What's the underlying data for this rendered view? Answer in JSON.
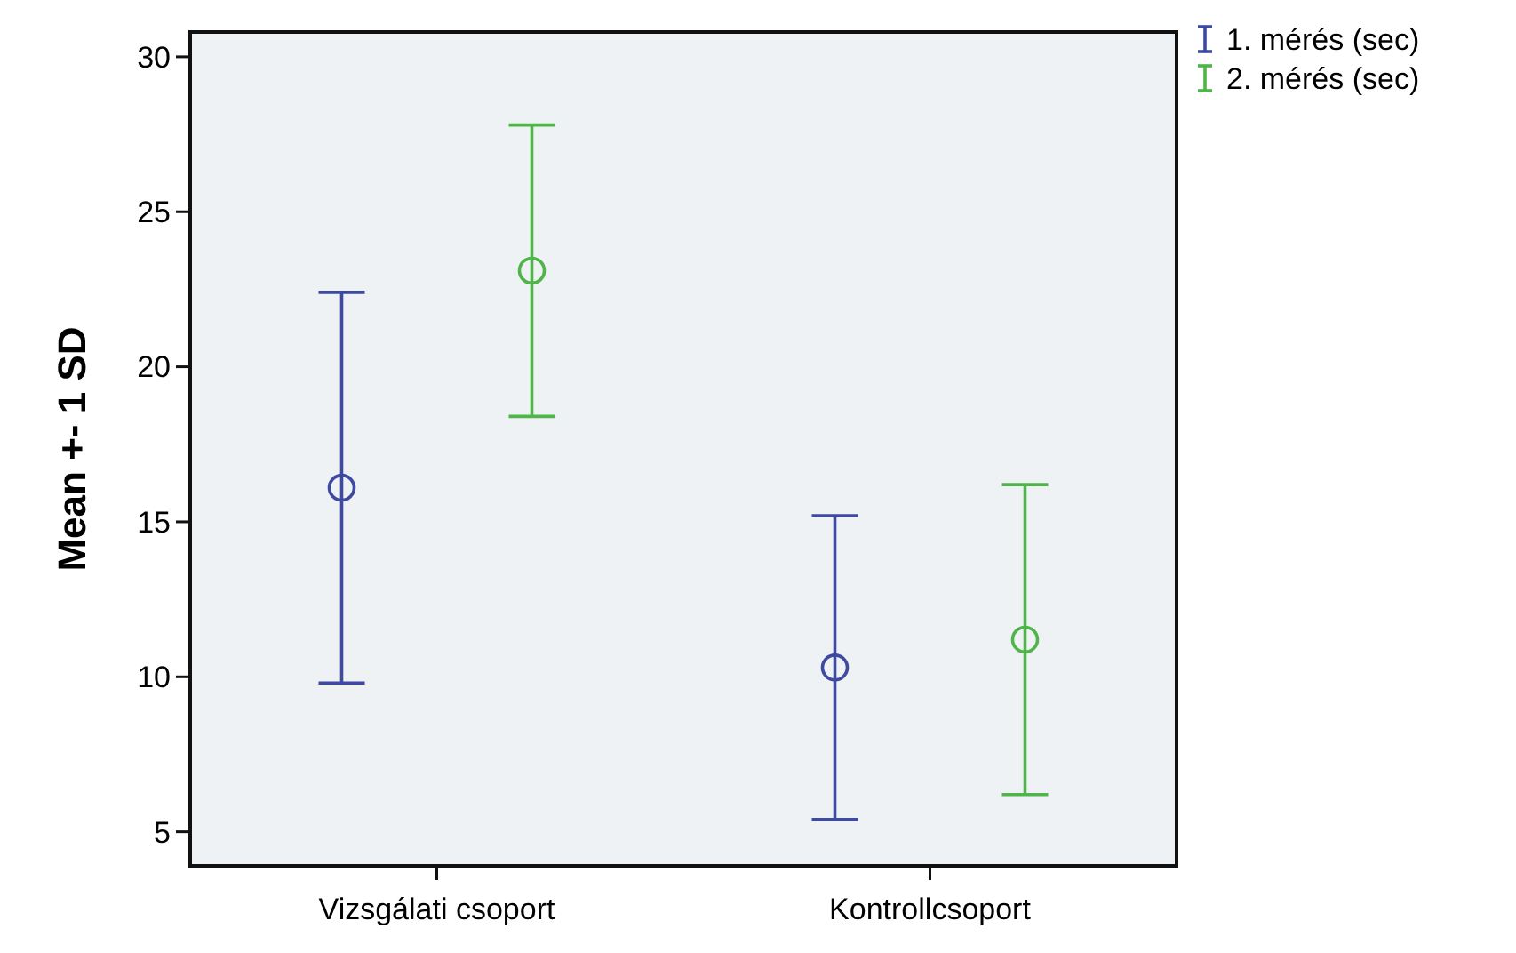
{
  "chart_data": {
    "type": "scatter",
    "ylabel": "Mean +- 1 SD",
    "categories": [
      "Vizsgálati csoport",
      "Kontrollcsoport"
    ],
    "series": [
      {
        "name": "1. mérés (sec)",
        "color": "#3d4aa0",
        "values": [
          16.1,
          10.3
        ],
        "errors": [
          6.3,
          4.9
        ]
      },
      {
        "name": "2. mérés (sec)",
        "color": "#4fb548",
        "values": [
          23.1,
          11.2
        ],
        "errors": [
          4.7,
          5.0
        ]
      }
    ],
    "ylim": [
      3.9,
      30.8
    ],
    "yticks": [
      5,
      10,
      15,
      20,
      25,
      30
    ],
    "grid": false,
    "legend": "top right",
    "marker": "circle"
  }
}
